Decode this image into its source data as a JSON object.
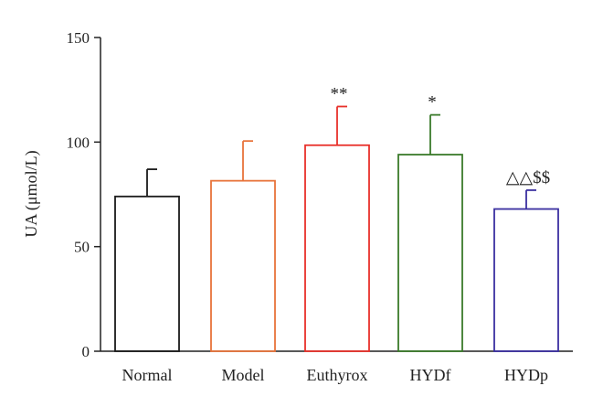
{
  "chart_data": {
    "type": "bar",
    "categories": [
      "Normal",
      "Model",
      "Euthyrox",
      "HYDf",
      "HYDp"
    ],
    "values": [
      74,
      81.5,
      98.5,
      94,
      68
    ],
    "errors": [
      13,
      19,
      18.5,
      19,
      9
    ],
    "significance": [
      "",
      "",
      "**",
      "*",
      "△△$$"
    ],
    "bar_colors": [
      "#1a1a1a",
      "#e8733a",
      "#e8302a",
      "#3a7a2a",
      "#3a2fa0"
    ],
    "ylabel": "UA (μmol/L)",
    "ylim": [
      0,
      150
    ],
    "yticks": [
      0,
      50,
      100,
      150
    ],
    "grid": false
  }
}
